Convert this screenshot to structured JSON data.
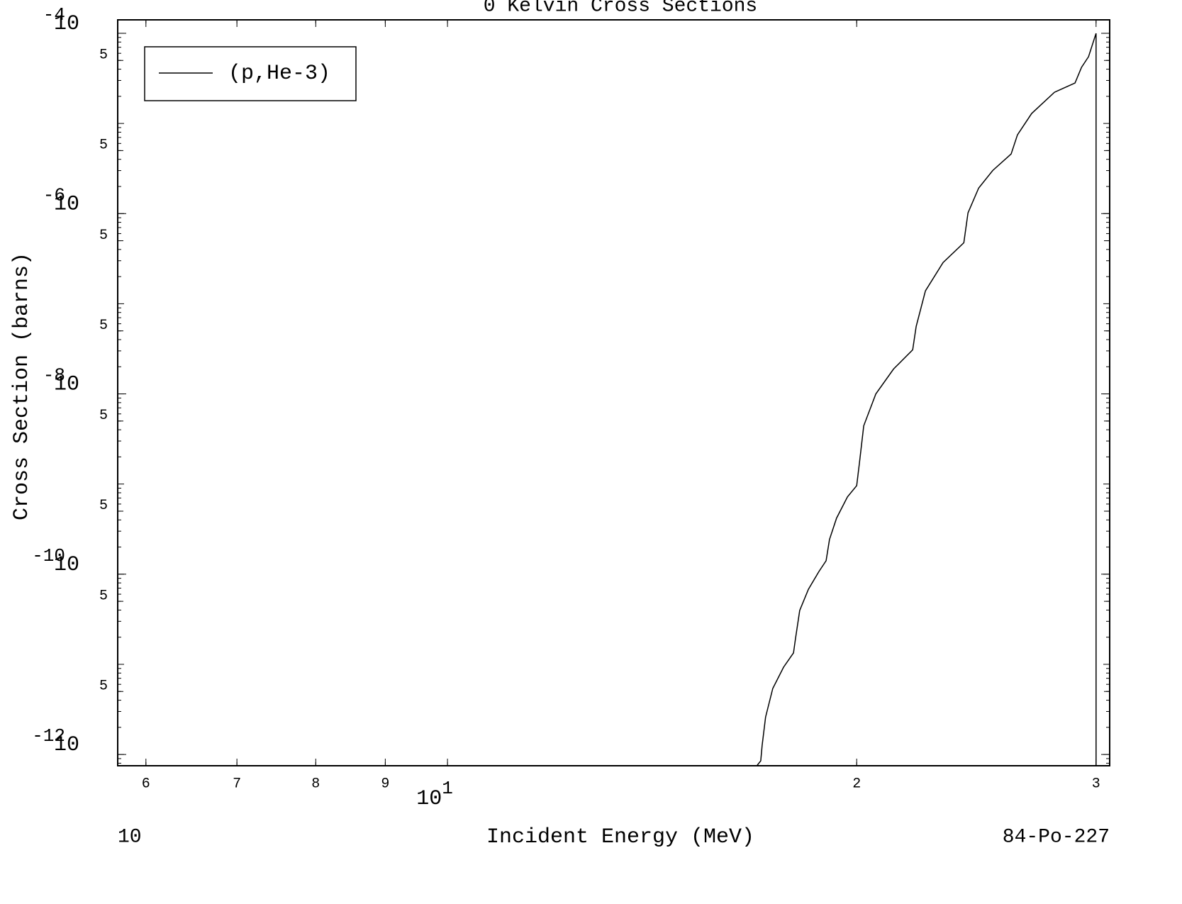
{
  "chart_data": {
    "type": "line",
    "title": "0 Kelvin Cross Sections",
    "xlabel": "Incident Energy (MeV)",
    "ylabel": "Cross Section (barns)",
    "annotations": [
      "10",
      "84-Po-227"
    ],
    "xscale": "log",
    "yscale": "log",
    "xlim": [
      5.72,
      30.7
    ],
    "ylim": [
      7.5e-13,
      0.000141
    ],
    "xticks": [
      6,
      7,
      8,
      9,
      {
        "value": 10,
        "label": "10",
        "exponent": "1"
      },
      {
        "value": 20,
        "label": "2"
      },
      {
        "value": 30,
        "label": "3"
      }
    ],
    "yticks": [
      {
        "value": 0.0001,
        "label": "10",
        "exponent": "-4"
      },
      {
        "value": 5e-05,
        "label": "5"
      },
      {
        "value": 5e-06,
        "label": "5"
      },
      {
        "value": 1e-06,
        "label": "10",
        "exponent": "-6"
      },
      {
        "value": 5e-07,
        "label": "5"
      },
      {
        "value": 5e-08,
        "label": "5"
      },
      {
        "value": 1e-08,
        "label": "10",
        "exponent": "-8"
      },
      {
        "value": 5e-09,
        "label": "5"
      },
      {
        "value": 5e-10,
        "label": "5"
      },
      {
        "value": 1e-10,
        "label": "10",
        "exponent": "-10"
      },
      {
        "value": 5e-11,
        "label": "5"
      },
      {
        "value": 5e-12,
        "label": "5"
      },
      {
        "value": 1e-12,
        "label": "10",
        "exponent": "-12"
      }
    ],
    "legend": "upper left",
    "series": [
      {
        "name": "(p,He-3)",
        "color": "#000000",
        "x": [
          16.9,
          17.0,
          17.04,
          17.14,
          17.35,
          17.67,
          17.97,
          18.03,
          18.16,
          18.43,
          18.76,
          18.99,
          19.1,
          19.33,
          19.69,
          20.0,
          20.1,
          20.24,
          20.66,
          21.29,
          21.99,
          22.12,
          22.47,
          23.15,
          23.98,
          24.15,
          24.59,
          25.19,
          25.98,
          26.26,
          26.9,
          27.96,
          28.95,
          29.27,
          29.62,
          30.0
        ],
        "values": [
          7.6e-13,
          8.5e-13,
          1.26e-12,
          2.6e-12,
          5.4e-12,
          9.3e-12,
          1.34e-11,
          1.92e-11,
          3.96e-11,
          6.8e-11,
          1.07e-10,
          1.41e-10,
          2.43e-10,
          4.19e-10,
          7.2e-10,
          9.6e-10,
          1.79e-09,
          4.43e-09,
          1e-08,
          1.89e-08,
          3.08e-08,
          5.6e-08,
          1.39e-07,
          2.86e-07,
          4.75e-07,
          1.02e-06,
          1.92e-06,
          3.02e-06,
          4.58e-06,
          7.48e-06,
          1.29e-05,
          2.22e-05,
          2.81e-05,
          4.19e-05,
          5.5e-05,
          0.0001
        ]
      }
    ]
  }
}
